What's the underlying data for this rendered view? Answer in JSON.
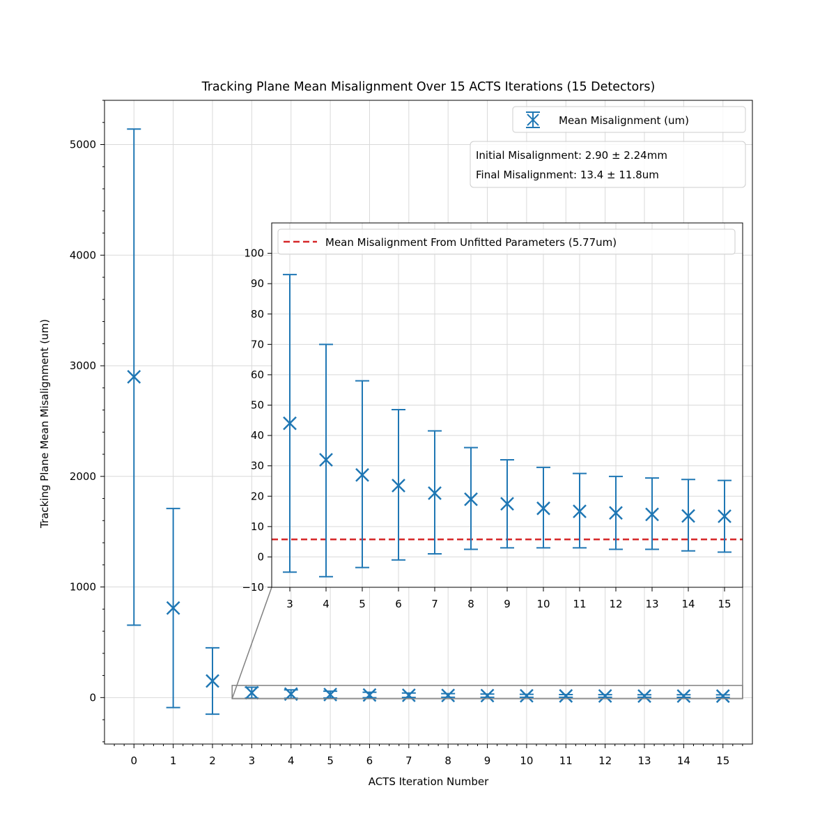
{
  "chart_data": [
    {
      "type": "scatter",
      "title": "Tracking Plane Mean Misalignment Over 15 ACTS Iterations (15 Detectors)",
      "xlabel": "ACTS Iteration Number",
      "ylabel": "Tracking Plane Mean Misalignment (um)",
      "xlim": [
        -0.75,
        15.75
      ],
      "ylim": [
        -420,
        5400
      ],
      "xticks": [
        0,
        1,
        2,
        3,
        4,
        5,
        6,
        7,
        8,
        9,
        10,
        11,
        12,
        13,
        14,
        15
      ],
      "xtick_labels": [
        "0",
        "1",
        "2",
        "3",
        "4",
        "5",
        "6",
        "7",
        "8",
        "9",
        "10",
        "11",
        "12",
        "13",
        "14",
        "15"
      ],
      "yticks": [
        0,
        1000,
        2000,
        3000,
        4000,
        5000
      ],
      "ytick_labels": [
        "0",
        "1000",
        "2000",
        "3000",
        "4000",
        "5000"
      ],
      "grid": true,
      "legend_position": "top-right",
      "series": [
        {
          "name": "Mean Misalignment (um)",
          "color": "#1f77b4",
          "marker": "x",
          "points": [
            {
              "x": 0,
              "y": 2900,
              "lo": 655,
              "hi": 5140
            },
            {
              "x": 1,
              "y": 810,
              "lo": -90,
              "hi": 1710
            },
            {
              "x": 2,
              "y": 150,
              "lo": -150,
              "hi": 450
            },
            {
              "x": 3,
              "y": 44,
              "lo": -5,
              "hi": 93
            },
            {
              "x": 4,
              "y": 32,
              "lo": -6.5,
              "hi": 70
            },
            {
              "x": 5,
              "y": 27,
              "lo": -3.5,
              "hi": 58
            },
            {
              "x": 6,
              "y": 23.5,
              "lo": -1,
              "hi": 48.5
            },
            {
              "x": 7,
              "y": 21,
              "lo": 1,
              "hi": 41.5
            },
            {
              "x": 8,
              "y": 19,
              "lo": 2.5,
              "hi": 36
            },
            {
              "x": 9,
              "y": 17.5,
              "lo": 3,
              "hi": 32
            },
            {
              "x": 10,
              "y": 16,
              "lo": 3,
              "hi": 29.5
            },
            {
              "x": 11,
              "y": 15,
              "lo": 3,
              "hi": 27.5
            },
            {
              "x": 12,
              "y": 14.5,
              "lo": 2.5,
              "hi": 26.5
            },
            {
              "x": 13,
              "y": 14,
              "lo": 2.5,
              "hi": 26
            },
            {
              "x": 14,
              "y": 13.5,
              "lo": 2,
              "hi": 25.5
            },
            {
              "x": 15,
              "y": 13.4,
              "lo": 1.6,
              "hi": 25.2
            }
          ]
        }
      ],
      "annotation": {
        "lines": [
          "Initial Misalignment: 2.90 ± 2.24mm",
          "Final Misalignment: 13.4 ± 11.8um"
        ]
      }
    },
    {
      "type": "scatter",
      "title": "",
      "xlabel": "",
      "ylabel": "",
      "xlim": [
        2.5,
        15.5
      ],
      "ylim": [
        -10,
        110
      ],
      "xticks": [
        3,
        4,
        5,
        6,
        7,
        8,
        9,
        10,
        11,
        12,
        13,
        14,
        15
      ],
      "xtick_labels": [
        "3",
        "4",
        "5",
        "6",
        "7",
        "8",
        "9",
        "10",
        "11",
        "12",
        "13",
        "14",
        "15"
      ],
      "yticks": [
        -10,
        0,
        10,
        20,
        30,
        40,
        50,
        60,
        70,
        80,
        90,
        100
      ],
      "ytick_labels": [
        "−10",
        "0",
        "10",
        "20",
        "30",
        "40",
        "50",
        "60",
        "70",
        "80",
        "90",
        "100"
      ],
      "grid": true,
      "legend_position": "top",
      "reference_line": {
        "name": "Mean Misalignment From Unfitted Parameters (5.77um)",
        "y": 5.77,
        "color": "#d62728",
        "style": "dashed"
      },
      "zoom_region": {
        "x": [
          2.5,
          15.5
        ],
        "y": [
          -10,
          110
        ]
      }
    }
  ]
}
